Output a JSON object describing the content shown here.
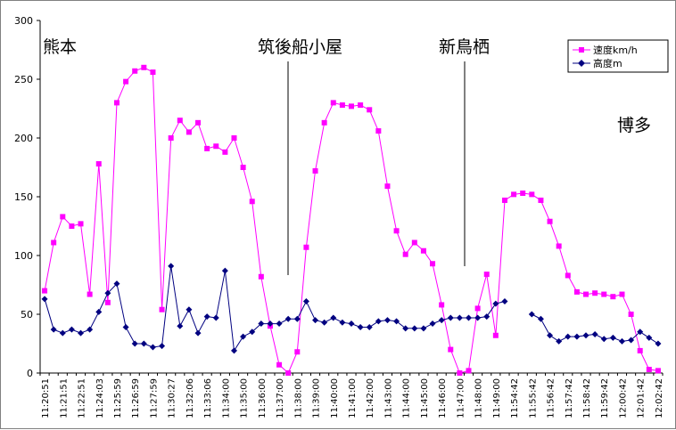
{
  "chart_data": {
    "type": "line",
    "title": "",
    "xlabel": "",
    "ylabel": "",
    "ylim": [
      0,
      300
    ],
    "yticks": [
      0,
      50,
      100,
      150,
      200,
      250,
      300
    ],
    "grid": false,
    "legend_position": "top-right",
    "x": [
      "11:20:51",
      "",
      "11:21:51",
      "",
      "11:22:51",
      "",
      "11:24:03",
      "",
      "11:25:59",
      "",
      "11:26:59",
      "",
      "11:27:59",
      "",
      "11:30:27",
      "",
      "11:32:06",
      "",
      "11:33:06",
      "",
      "11:34:00",
      "",
      "11:35:00",
      "",
      "11:36:00",
      "",
      "11:37:00",
      "",
      "11:38:00",
      "",
      "11:39:00",
      "",
      "11:40:00",
      "",
      "11:41:00",
      "",
      "11:42:00",
      "",
      "11:43:00",
      "",
      "11:44:00",
      "",
      "11:45:00",
      "",
      "11:46:00",
      "",
      "11:47:00",
      "",
      "11:48:00",
      "",
      "11:49:00",
      "",
      "11:54:42",
      "",
      "11:55:42",
      "",
      "11:56:42",
      "",
      "11:57:42",
      "",
      "11:58:42",
      "",
      "11:59:42",
      "",
      "12:00:42",
      "",
      "12:01:42",
      "",
      "12:02:42"
    ],
    "series": [
      {
        "name": "速度km/h",
        "color": "#ff00ff",
        "marker": "square",
        "values": [
          70,
          111,
          133,
          125,
          127,
          67,
          178,
          60,
          230,
          248,
          257,
          260,
          256,
          54,
          200,
          215,
          205,
          213,
          191,
          193,
          188,
          200,
          175,
          146,
          82,
          40,
          7,
          0,
          18,
          107,
          172,
          213,
          230,
          228,
          227,
          228,
          224,
          206,
          159,
          121,
          101,
          111,
          104,
          93,
          58,
          20,
          0,
          2,
          55,
          84,
          32,
          147,
          152,
          153,
          152,
          147,
          129,
          108,
          83,
          69,
          67,
          68,
          67,
          65,
          67,
          50,
          19,
          3,
          2
        ]
      },
      {
        "name": "高度m",
        "color": "#000080",
        "marker": "diamond",
        "values": [
          63,
          37,
          34,
          37,
          34,
          37,
          52,
          68,
          76,
          39,
          25,
          25,
          22,
          23,
          91,
          40,
          54,
          34,
          48,
          47,
          87,
          19,
          31,
          35,
          42,
          42,
          42,
          46,
          46,
          61,
          45,
          43,
          47,
          43,
          42,
          39,
          39,
          44,
          45,
          44,
          38,
          38,
          38,
          42,
          45,
          47,
          47,
          47,
          47,
          48,
          59,
          61,
          null,
          null,
          50,
          46,
          32,
          27,
          31,
          31,
          32,
          33,
          29,
          30,
          27,
          28,
          35,
          30,
          25
        ]
      }
    ],
    "annotations": [
      "熊本",
      "筑後船小屋",
      "新鳥栖",
      "博多"
    ]
  }
}
